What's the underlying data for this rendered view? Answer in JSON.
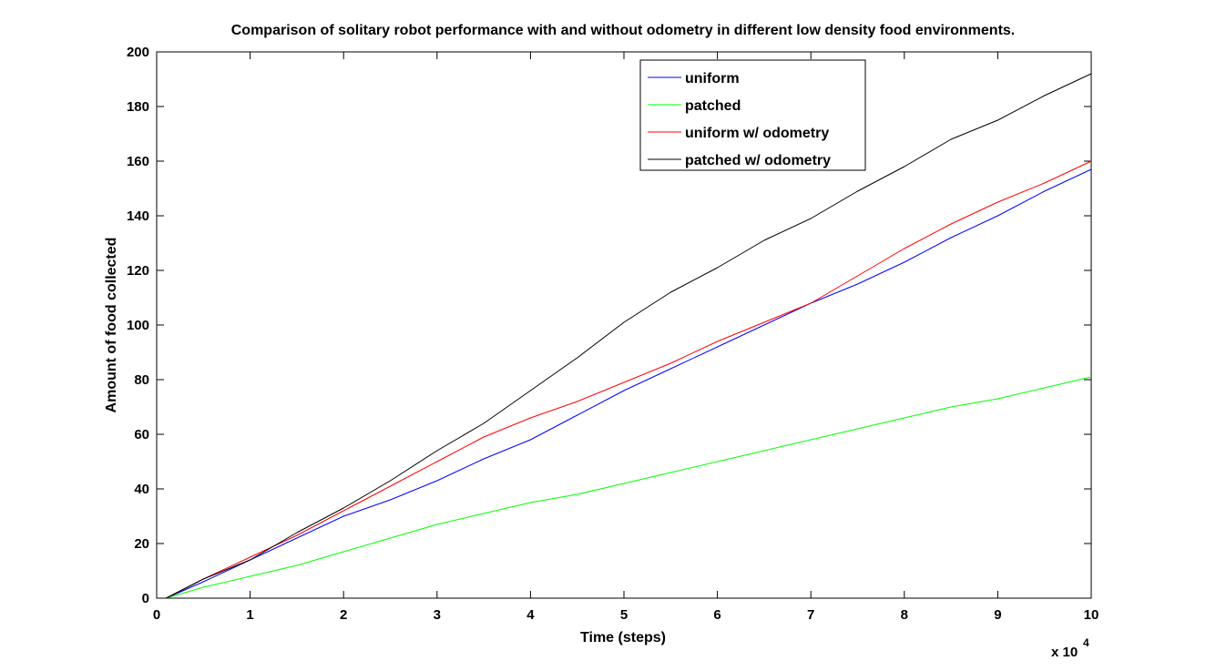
{
  "chart_data": {
    "type": "line",
    "title": "Comparison of solitary robot performance with and without odometry in different low density food environments.",
    "xlabel": "Time (steps)",
    "ylabel": "Amount of food collected",
    "x_multiplier_label": "x 10",
    "x_multiplier_exponent": "4",
    "xlim": [
      0,
      10
    ],
    "ylim": [
      0,
      200
    ],
    "x_ticks": [
      "0",
      "1",
      "2",
      "3",
      "4",
      "5",
      "6",
      "7",
      "8",
      "9",
      "10"
    ],
    "y_ticks": [
      "0",
      "20",
      "40",
      "60",
      "80",
      "100",
      "120",
      "140",
      "160",
      "180",
      "200"
    ],
    "grid": false,
    "legend_position": "top-right",
    "x": [
      0.1,
      0.5,
      1,
      1.5,
      2,
      2.5,
      3,
      3.5,
      4,
      4.5,
      5,
      5.5,
      6,
      6.5,
      7,
      7.5,
      8,
      8.5,
      9,
      9.5,
      10
    ],
    "series": [
      {
        "name": "uniform",
        "color": "#0000ff",
        "values": [
          0,
          6,
          14,
          22,
          30,
          36,
          43,
          51,
          58,
          67,
          76,
          84,
          92,
          100,
          108,
          115,
          123,
          132,
          140,
          149,
          157
        ]
      },
      {
        "name": "patched",
        "color": "#00ff00",
        "values": [
          0,
          4,
          8,
          12,
          17,
          22,
          27,
          31,
          35,
          38,
          42,
          46,
          50,
          54,
          58,
          62,
          66,
          70,
          73,
          77,
          81
        ]
      },
      {
        "name": "uniform w/ odometry",
        "color": "#ff0000",
        "values": [
          0,
          7,
          15,
          23,
          32,
          41,
          50,
          59,
          66,
          72,
          79,
          86,
          94,
          101,
          108,
          118,
          128,
          137,
          145,
          152,
          160
        ]
      },
      {
        "name": "patched w/ odometry",
        "color": "#000000",
        "values": [
          0,
          7,
          14,
          24,
          33,
          43,
          54,
          64,
          76,
          88,
          101,
          112,
          121,
          131,
          139,
          149,
          158,
          168,
          175,
          184,
          192
        ]
      }
    ]
  }
}
